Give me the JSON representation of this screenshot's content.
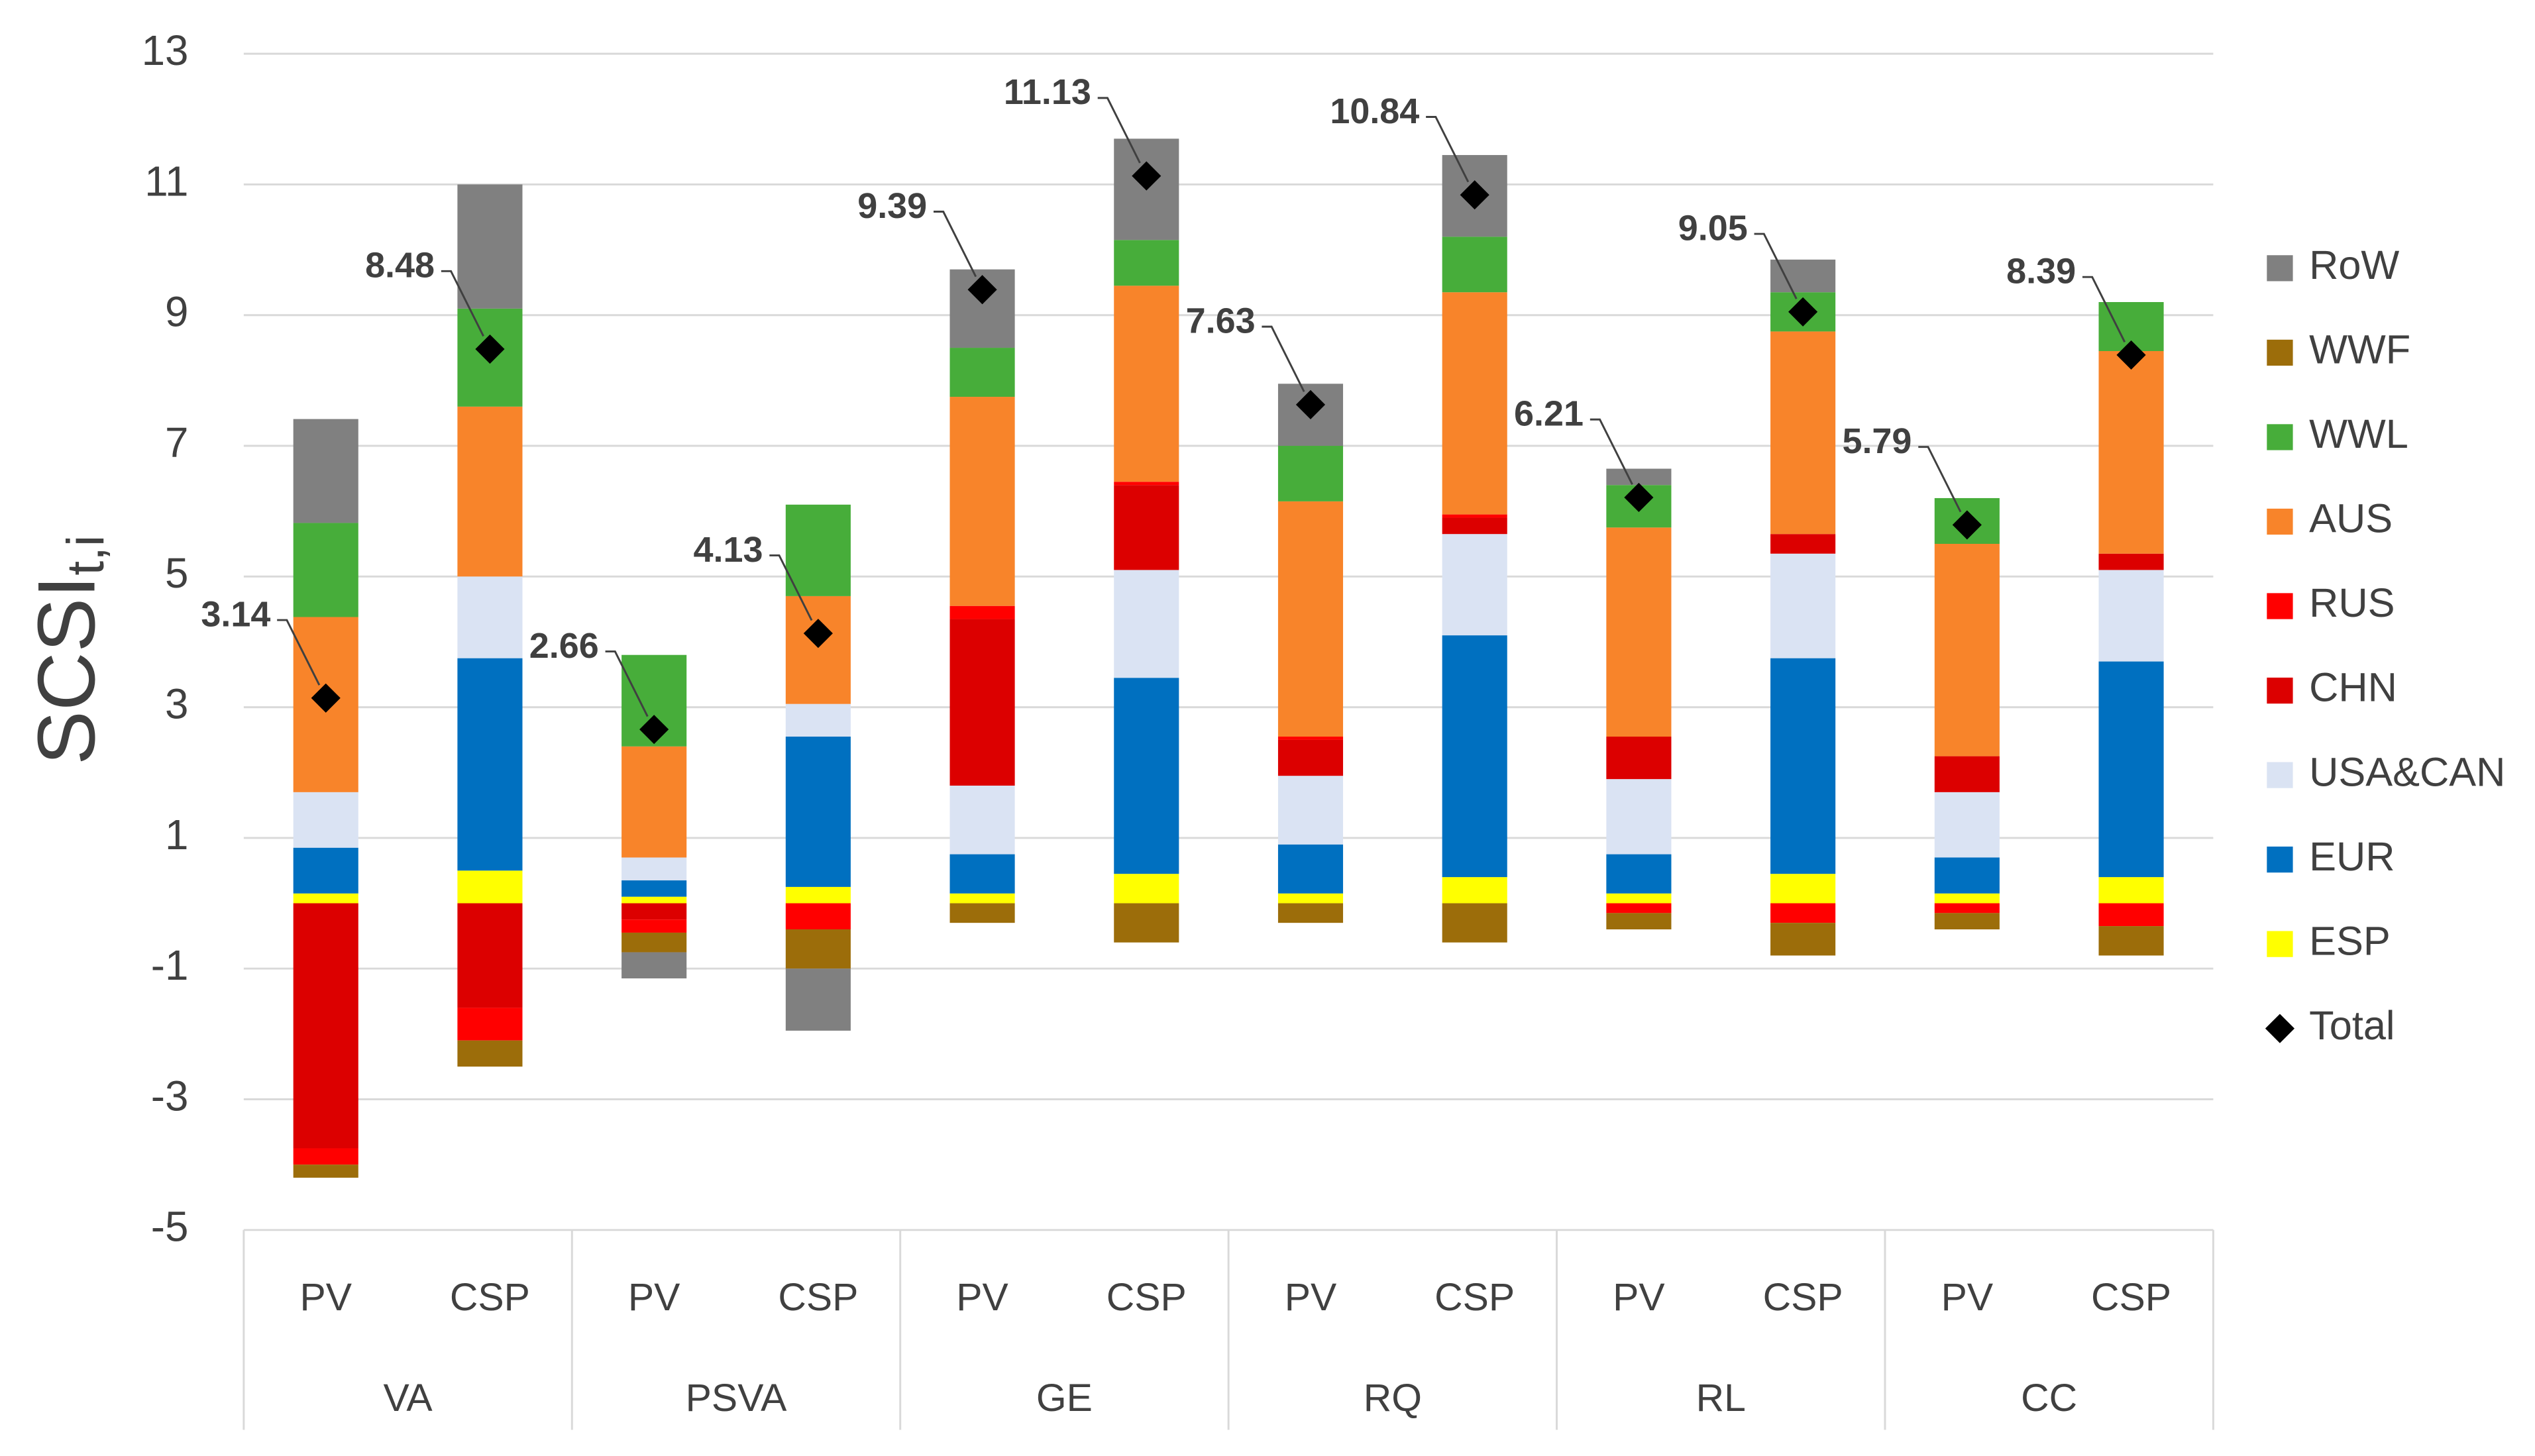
{
  "chart_data": {
    "type": "bar",
    "stacked": true,
    "ylabel": "SCSI",
    "ylabel_sub": "t,i",
    "categories": [
      "PV",
      "CSP",
      "PV",
      "CSP",
      "PV",
      "CSP",
      "PV",
      "CSP",
      "PV",
      "CSP",
      "PV",
      "CSP"
    ],
    "groups": [
      "VA",
      "PSVA",
      "GE",
      "RQ",
      "RL",
      "CC"
    ],
    "ylim": [
      -5,
      13
    ],
    "yticks": [
      -5,
      -3,
      -1,
      1,
      3,
      5,
      7,
      9,
      11,
      13
    ],
    "grid": true,
    "legend": "right",
    "series": [
      {
        "name": "ESP",
        "color": "#ffff00",
        "values": [
          0.15,
          0.5,
          0.1,
          0.25,
          0.15,
          0.45,
          0.15,
          0.4,
          0.15,
          0.45,
          0.15,
          0.4
        ]
      },
      {
        "name": "EUR",
        "color": "#0070c0",
        "values": [
          0.7,
          3.25,
          0.25,
          2.3,
          0.6,
          3.0,
          0.75,
          3.7,
          0.6,
          3.3,
          0.55,
          3.3
        ]
      },
      {
        "name": "USA&CAN",
        "color": "#dae3f3",
        "values": [
          0.85,
          1.25,
          0.35,
          0.5,
          1.05,
          1.65,
          1.05,
          1.55,
          1.15,
          1.6,
          1.0,
          1.4
        ]
      },
      {
        "name": "CHN",
        "color": "#dc0000",
        "values": [
          -3.75,
          -1.6,
          -0.25,
          0,
          2.55,
          1.3,
          0.55,
          0.25,
          0.65,
          0.3,
          0.55,
          0.25
        ]
      },
      {
        "name": "RUS",
        "color": "#ff0000",
        "values": [
          -0.25,
          -0.5,
          -0.2,
          -0.4,
          0.2,
          0.05,
          0.05,
          0.05,
          -0.15,
          -0.3,
          -0.15,
          -0.35
        ]
      },
      {
        "name": "AUS",
        "color": "#f8842a",
        "values": [
          2.68,
          2.6,
          1.7,
          1.65,
          3.2,
          3.0,
          3.6,
          3.4,
          3.2,
          3.1,
          3.25,
          3.1
        ]
      },
      {
        "name": "WWL",
        "color": "#47ad3a",
        "values": [
          1.44,
          1.5,
          1.4,
          1.4,
          0.75,
          0.7,
          0.85,
          0.85,
          0.65,
          0.6,
          0.7,
          0.75
        ]
      },
      {
        "name": "WWF",
        "color": "#9c6d0a",
        "values": [
          -0.2,
          -0.4,
          -0.3,
          -0.6,
          -0.3,
          -0.6,
          -0.3,
          -0.6,
          -0.25,
          -0.5,
          -0.25,
          -0.45
        ]
      },
      {
        "name": "RoW",
        "color": "#808080",
        "values": [
          1.59,
          1.9,
          -0.4,
          -0.95,
          1.2,
          1.55,
          0.95,
          1.25,
          0.25,
          0.5,
          0,
          0
        ]
      },
      {
        "name": "Total",
        "color": "#000000",
        "marker": "diamond",
        "values": [
          3.14,
          8.48,
          2.66,
          4.13,
          9.39,
          11.13,
          7.63,
          10.84,
          6.21,
          9.05,
          5.79,
          8.39
        ]
      }
    ]
  }
}
